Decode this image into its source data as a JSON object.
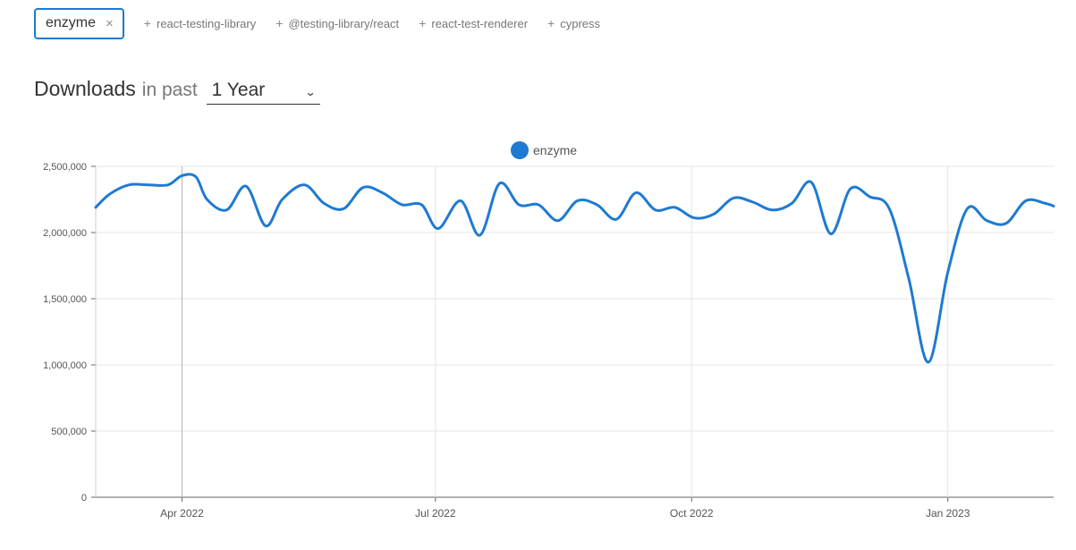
{
  "packages": {
    "selected": {
      "name": "enzyme",
      "remove": "×"
    },
    "suggestions": [
      {
        "label": "react-testing-library"
      },
      {
        "label": "@testing-library/react"
      },
      {
        "label": "react-test-renderer"
      },
      {
        "label": "cypress"
      }
    ],
    "plus": "+"
  },
  "heading": {
    "downloads": "Downloads",
    "in_past": "in past",
    "range": "1 Year",
    "chevron": "⌄"
  },
  "colors": {
    "series": "#1f7ad1",
    "grid": "#e6e6e6"
  },
  "chart_data": {
    "type": "line",
    "title": "",
    "xlabel": "",
    "ylabel": "",
    "ylim": [
      0,
      2500000
    ],
    "y_ticks": [
      {
        "value": 0,
        "label": "0"
      },
      {
        "value": 500000,
        "label": "500,000"
      },
      {
        "value": 1000000,
        "label": "1,000,000"
      },
      {
        "value": 1500000,
        "label": "1,500,000"
      },
      {
        "value": 2000000,
        "label": "2,000,000"
      },
      {
        "value": 2500000,
        "label": "2,500,000"
      }
    ],
    "xlim": [
      "2022-03-01",
      "2023-02-08"
    ],
    "x_ticks": [
      {
        "date": "2022-04-01",
        "label": "Apr 2022"
      },
      {
        "date": "2022-07-01",
        "label": "Jul 2022"
      },
      {
        "date": "2022-10-01",
        "label": "Oct 2022"
      },
      {
        "date": "2023-01-01",
        "label": "Jan 2023"
      }
    ],
    "grid": true,
    "legend": "top-center",
    "series": [
      {
        "name": "enzyme",
        "points": [
          [
            "2022-03-01",
            2190000
          ],
          [
            "2022-03-06",
            2290000
          ],
          [
            "2022-03-13",
            2360000
          ],
          [
            "2022-03-20",
            2360000
          ],
          [
            "2022-03-27",
            2360000
          ],
          [
            "2022-04-01",
            2430000
          ],
          [
            "2022-04-06",
            2420000
          ],
          [
            "2022-04-10",
            2250000
          ],
          [
            "2022-04-17",
            2170000
          ],
          [
            "2022-04-24",
            2350000
          ],
          [
            "2022-05-01",
            2050000
          ],
          [
            "2022-05-07",
            2250000
          ],
          [
            "2022-05-15",
            2360000
          ],
          [
            "2022-05-22",
            2220000
          ],
          [
            "2022-05-29",
            2180000
          ],
          [
            "2022-06-05",
            2340000
          ],
          [
            "2022-06-12",
            2300000
          ],
          [
            "2022-06-19",
            2210000
          ],
          [
            "2022-06-26",
            2210000
          ],
          [
            "2022-07-02",
            2030000
          ],
          [
            "2022-07-10",
            2240000
          ],
          [
            "2022-07-17",
            1980000
          ],
          [
            "2022-07-24",
            2370000
          ],
          [
            "2022-07-31",
            2210000
          ],
          [
            "2022-08-07",
            2210000
          ],
          [
            "2022-08-14",
            2090000
          ],
          [
            "2022-08-21",
            2240000
          ],
          [
            "2022-08-28",
            2210000
          ],
          [
            "2022-09-04",
            2100000
          ],
          [
            "2022-09-11",
            2300000
          ],
          [
            "2022-09-18",
            2170000
          ],
          [
            "2022-09-25",
            2190000
          ],
          [
            "2022-10-02",
            2110000
          ],
          [
            "2022-10-09",
            2140000
          ],
          [
            "2022-10-16",
            2260000
          ],
          [
            "2022-10-23",
            2230000
          ],
          [
            "2022-10-30",
            2170000
          ],
          [
            "2022-11-06",
            2220000
          ],
          [
            "2022-11-13",
            2380000
          ],
          [
            "2022-11-20",
            1990000
          ],
          [
            "2022-11-27",
            2330000
          ],
          [
            "2022-12-04",
            2270000
          ],
          [
            "2022-12-11",
            2180000
          ],
          [
            "2022-12-18",
            1650000
          ],
          [
            "2022-12-25",
            1020000
          ],
          [
            "2023-01-01",
            1700000
          ],
          [
            "2023-01-08",
            2180000
          ],
          [
            "2023-01-15",
            2090000
          ],
          [
            "2023-01-22",
            2070000
          ],
          [
            "2023-01-29",
            2240000
          ],
          [
            "2023-02-05",
            2220000
          ],
          [
            "2023-02-08",
            2200000
          ]
        ]
      }
    ]
  }
}
